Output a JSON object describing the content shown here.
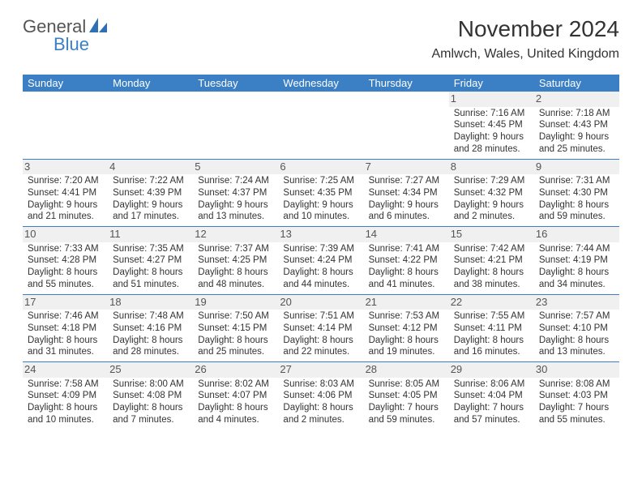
{
  "logo": {
    "word1": "General",
    "word2": "Blue",
    "shape_color": "#2e6fb5"
  },
  "title": "November 2024",
  "location": "Amlwch, Wales, United Kingdom",
  "colors": {
    "header_bg": "#3b7fc4",
    "header_text": "#ffffff",
    "row_divider": "#3b7fc4",
    "daynum_bg": "#f0f0f0",
    "text": "#333333"
  },
  "day_headers": [
    "Sunday",
    "Monday",
    "Tuesday",
    "Wednesday",
    "Thursday",
    "Friday",
    "Saturday"
  ],
  "weeks": [
    [
      {
        "n": "",
        "sunrise": "",
        "sunset": "",
        "daylight": ""
      },
      {
        "n": "",
        "sunrise": "",
        "sunset": "",
        "daylight": ""
      },
      {
        "n": "",
        "sunrise": "",
        "sunset": "",
        "daylight": ""
      },
      {
        "n": "",
        "sunrise": "",
        "sunset": "",
        "daylight": ""
      },
      {
        "n": "",
        "sunrise": "",
        "sunset": "",
        "daylight": ""
      },
      {
        "n": "1",
        "sunrise": "Sunrise: 7:16 AM",
        "sunset": "Sunset: 4:45 PM",
        "daylight": "Daylight: 9 hours and 28 minutes."
      },
      {
        "n": "2",
        "sunrise": "Sunrise: 7:18 AM",
        "sunset": "Sunset: 4:43 PM",
        "daylight": "Daylight: 9 hours and 25 minutes."
      }
    ],
    [
      {
        "n": "3",
        "sunrise": "Sunrise: 7:20 AM",
        "sunset": "Sunset: 4:41 PM",
        "daylight": "Daylight: 9 hours and 21 minutes."
      },
      {
        "n": "4",
        "sunrise": "Sunrise: 7:22 AM",
        "sunset": "Sunset: 4:39 PM",
        "daylight": "Daylight: 9 hours and 17 minutes."
      },
      {
        "n": "5",
        "sunrise": "Sunrise: 7:24 AM",
        "sunset": "Sunset: 4:37 PM",
        "daylight": "Daylight: 9 hours and 13 minutes."
      },
      {
        "n": "6",
        "sunrise": "Sunrise: 7:25 AM",
        "sunset": "Sunset: 4:35 PM",
        "daylight": "Daylight: 9 hours and 10 minutes."
      },
      {
        "n": "7",
        "sunrise": "Sunrise: 7:27 AM",
        "sunset": "Sunset: 4:34 PM",
        "daylight": "Daylight: 9 hours and 6 minutes."
      },
      {
        "n": "8",
        "sunrise": "Sunrise: 7:29 AM",
        "sunset": "Sunset: 4:32 PM",
        "daylight": "Daylight: 9 hours and 2 minutes."
      },
      {
        "n": "9",
        "sunrise": "Sunrise: 7:31 AM",
        "sunset": "Sunset: 4:30 PM",
        "daylight": "Daylight: 8 hours and 59 minutes."
      }
    ],
    [
      {
        "n": "10",
        "sunrise": "Sunrise: 7:33 AM",
        "sunset": "Sunset: 4:28 PM",
        "daylight": "Daylight: 8 hours and 55 minutes."
      },
      {
        "n": "11",
        "sunrise": "Sunrise: 7:35 AM",
        "sunset": "Sunset: 4:27 PM",
        "daylight": "Daylight: 8 hours and 51 minutes."
      },
      {
        "n": "12",
        "sunrise": "Sunrise: 7:37 AM",
        "sunset": "Sunset: 4:25 PM",
        "daylight": "Daylight: 8 hours and 48 minutes."
      },
      {
        "n": "13",
        "sunrise": "Sunrise: 7:39 AM",
        "sunset": "Sunset: 4:24 PM",
        "daylight": "Daylight: 8 hours and 44 minutes."
      },
      {
        "n": "14",
        "sunrise": "Sunrise: 7:41 AM",
        "sunset": "Sunset: 4:22 PM",
        "daylight": "Daylight: 8 hours and 41 minutes."
      },
      {
        "n": "15",
        "sunrise": "Sunrise: 7:42 AM",
        "sunset": "Sunset: 4:21 PM",
        "daylight": "Daylight: 8 hours and 38 minutes."
      },
      {
        "n": "16",
        "sunrise": "Sunrise: 7:44 AM",
        "sunset": "Sunset: 4:19 PM",
        "daylight": "Daylight: 8 hours and 34 minutes."
      }
    ],
    [
      {
        "n": "17",
        "sunrise": "Sunrise: 7:46 AM",
        "sunset": "Sunset: 4:18 PM",
        "daylight": "Daylight: 8 hours and 31 minutes."
      },
      {
        "n": "18",
        "sunrise": "Sunrise: 7:48 AM",
        "sunset": "Sunset: 4:16 PM",
        "daylight": "Daylight: 8 hours and 28 minutes."
      },
      {
        "n": "19",
        "sunrise": "Sunrise: 7:50 AM",
        "sunset": "Sunset: 4:15 PM",
        "daylight": "Daylight: 8 hours and 25 minutes."
      },
      {
        "n": "20",
        "sunrise": "Sunrise: 7:51 AM",
        "sunset": "Sunset: 4:14 PM",
        "daylight": "Daylight: 8 hours and 22 minutes."
      },
      {
        "n": "21",
        "sunrise": "Sunrise: 7:53 AM",
        "sunset": "Sunset: 4:12 PM",
        "daylight": "Daylight: 8 hours and 19 minutes."
      },
      {
        "n": "22",
        "sunrise": "Sunrise: 7:55 AM",
        "sunset": "Sunset: 4:11 PM",
        "daylight": "Daylight: 8 hours and 16 minutes."
      },
      {
        "n": "23",
        "sunrise": "Sunrise: 7:57 AM",
        "sunset": "Sunset: 4:10 PM",
        "daylight": "Daylight: 8 hours and 13 minutes."
      }
    ],
    [
      {
        "n": "24",
        "sunrise": "Sunrise: 7:58 AM",
        "sunset": "Sunset: 4:09 PM",
        "daylight": "Daylight: 8 hours and 10 minutes."
      },
      {
        "n": "25",
        "sunrise": "Sunrise: 8:00 AM",
        "sunset": "Sunset: 4:08 PM",
        "daylight": "Daylight: 8 hours and 7 minutes."
      },
      {
        "n": "26",
        "sunrise": "Sunrise: 8:02 AM",
        "sunset": "Sunset: 4:07 PM",
        "daylight": "Daylight: 8 hours and 4 minutes."
      },
      {
        "n": "27",
        "sunrise": "Sunrise: 8:03 AM",
        "sunset": "Sunset: 4:06 PM",
        "daylight": "Daylight: 8 hours and 2 minutes."
      },
      {
        "n": "28",
        "sunrise": "Sunrise: 8:05 AM",
        "sunset": "Sunset: 4:05 PM",
        "daylight": "Daylight: 7 hours and 59 minutes."
      },
      {
        "n": "29",
        "sunrise": "Sunrise: 8:06 AM",
        "sunset": "Sunset: 4:04 PM",
        "daylight": "Daylight: 7 hours and 57 minutes."
      },
      {
        "n": "30",
        "sunrise": "Sunrise: 8:08 AM",
        "sunset": "Sunset: 4:03 PM",
        "daylight": "Daylight: 7 hours and 55 minutes."
      }
    ]
  ]
}
